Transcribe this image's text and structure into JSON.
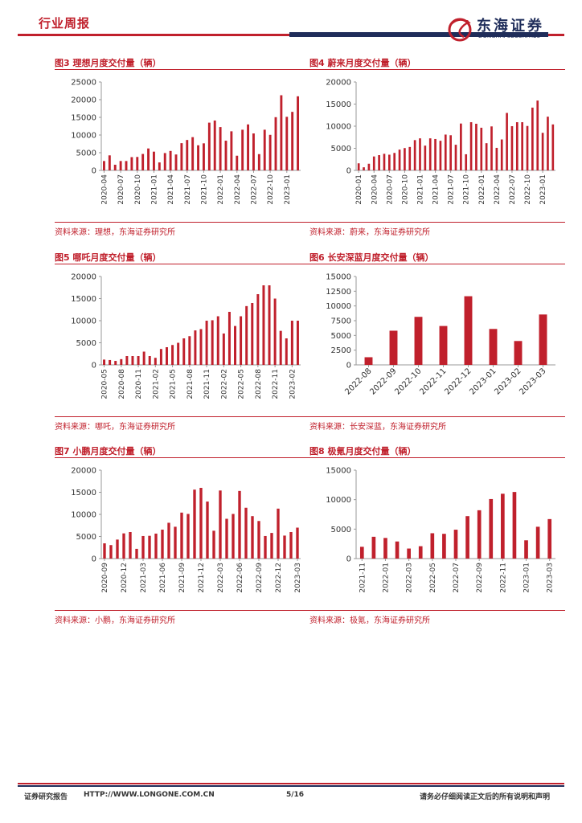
{
  "header": {
    "section": "行业周报",
    "logo_cn": "东海证券",
    "logo_en": "DONGHAI SECURITIES"
  },
  "footer": {
    "report_type": "证券研究报告",
    "url": "HTTP://WWW.LONGONE.COM.CN",
    "page": "5/16",
    "disclaimer": "请务必仔细阅读正文后的所有说明和声明"
  },
  "panels": [
    {
      "title": "图3  理想月度交付量（辆）",
      "source": "资料来源：理想，东海证券研究所"
    },
    {
      "title": "图4  蔚来月度交付量（辆）",
      "source": "资料来源：蔚来，东海证券研究所"
    },
    {
      "title": "图5  哪吒月度交付量（辆）",
      "source": "资料来源：哪吒，东海证券研究所"
    },
    {
      "title": "图6  长安深蓝月度交付量（辆）",
      "source": "资料来源：长安深蓝，东海证券研究所"
    },
    {
      "title": "图7  小鹏月度交付量（辆）",
      "source": "资料来源：小鹏，东海证券研究所"
    },
    {
      "title": "图8  极氪月度交付量（辆）",
      "source": "资料来源：极氪，东海证券研究所"
    }
  ],
  "colors": {
    "bar": "#c0202c",
    "accent": "#c0202c",
    "navy": "#1f2d5a"
  },
  "chart_data": [
    {
      "type": "bar",
      "title": "理想月度交付量（辆）",
      "ylim": [
        0,
        25000
      ],
      "yticks": [
        0,
        5000,
        10000,
        15000,
        20000,
        25000
      ],
      "tick_labels": [
        "2020-04",
        "2020-07",
        "2020-10",
        "2021-01",
        "2021-04",
        "2021-07",
        "2021-10",
        "2022-01",
        "2022-04",
        "2022-07",
        "2022-10",
        "2023-01"
      ],
      "values": [
        2650,
        4250,
        1600,
        2650,
        2650,
        3750,
        3800,
        4650,
        6200,
        5300,
        2250,
        4900,
        5500,
        4500,
        7700,
        8600,
        9400,
        7100,
        7650,
        13500,
        14100,
        12250,
        8400,
        11050,
        4150,
        11500,
        13000,
        10450,
        4600,
        11500,
        10050,
        15050,
        21250,
        15150,
        16550,
        20950
      ]
    },
    {
      "type": "bar",
      "title": "蔚来月度交付量（辆）",
      "ylim": [
        0,
        20000
      ],
      "yticks": [
        0,
        5000,
        10000,
        15000,
        20000
      ],
      "tick_labels": [
        "2020-01",
        "2020-04",
        "2020-07",
        "2020-10",
        "2021-01",
        "2021-04",
        "2021-07",
        "2021-10",
        "2022-01",
        "2022-04",
        "2022-07",
        "2022-10",
        "2023-01"
      ],
      "values": [
        1600,
        700,
        1500,
        3150,
        3450,
        3750,
        3550,
        3950,
        4700,
        5050,
        5300,
        6850,
        7250,
        5600,
        7250,
        7100,
        6700,
        8100,
        7950,
        5800,
        10600,
        3650,
        10900,
        10550,
        9650,
        6150,
        9950,
        5100,
        7000,
        13000,
        10000,
        10900,
        10900,
        10050,
        14200,
        15800,
        8500,
        12150,
        10400
      ]
    },
    {
      "type": "bar",
      "title": "哪吒月度交付量（辆）",
      "ylim": [
        0,
        20000
      ],
      "yticks": [
        0,
        5000,
        10000,
        15000,
        20000
      ],
      "tick_labels": [
        "2020-05",
        "2020-08",
        "2020-11",
        "2021-02",
        "2021-05",
        "2021-08",
        "2021-11",
        "2022-02",
        "2022-05",
        "2022-08",
        "2022-11",
        "2023-02"
      ],
      "values": [
        1200,
        1100,
        900,
        1300,
        2000,
        2000,
        2000,
        3000,
        2000,
        1600,
        3600,
        4000,
        4500,
        5000,
        6000,
        6500,
        7800,
        8100,
        10000,
        10100,
        11000,
        7100,
        12000,
        8800,
        11000,
        13300,
        14000,
        16000,
        18000,
        18000,
        15000,
        7700,
        6000,
        10000,
        10000
      ]
    },
    {
      "type": "bar",
      "title": "长安深蓝月度交付量（辆）",
      "ylim": [
        0,
        15000
      ],
      "yticks": [
        0,
        2500,
        5000,
        7500,
        10000,
        12500,
        15000
      ],
      "tick_labels": [
        "2022-08",
        "2022-09",
        "2022-10",
        "2022-11",
        "2022-12",
        "2023-01",
        "2023-02",
        "2023-03"
      ],
      "values": [
        1300,
        5800,
        8150,
        6600,
        11650,
        6100,
        4050,
        8550
      ]
    },
    {
      "type": "bar",
      "title": "小鹏月度交付量（辆）",
      "ylim": [
        0,
        20000
      ],
      "yticks": [
        0,
        5000,
        10000,
        15000,
        20000
      ],
      "tick_labels": [
        "2020-09",
        "2020-12",
        "2021-03",
        "2021-06",
        "2021-09",
        "2021-12",
        "2022-03",
        "2022-06",
        "2022-09",
        "2022-12",
        "2023-03"
      ],
      "values": [
        3450,
        3050,
        4300,
        5700,
        6000,
        2200,
        5100,
        5150,
        5650,
        6550,
        8100,
        7200,
        10400,
        10100,
        15600,
        16000,
        12900,
        6300,
        15400,
        9000,
        10100,
        15300,
        11500,
        9600,
        8500,
        5100,
        5800,
        11300,
        5200,
        6000,
        7000
      ]
    },
    {
      "type": "bar",
      "title": "极氪月度交付量（辆）",
      "ylim": [
        0,
        15000
      ],
      "yticks": [
        0,
        5000,
        10000,
        15000
      ],
      "tick_labels": [
        "2021-11",
        "2022-01",
        "2022-03",
        "2022-05",
        "2022-07",
        "2022-09",
        "2022-11",
        "2023-01",
        "2023-03"
      ],
      "values": [
        2000,
        3700,
        3500,
        2900,
        1700,
        2100,
        4300,
        4200,
        4900,
        7200,
        8200,
        10100,
        11000,
        11300,
        3100,
        5400,
        6700
      ]
    }
  ]
}
